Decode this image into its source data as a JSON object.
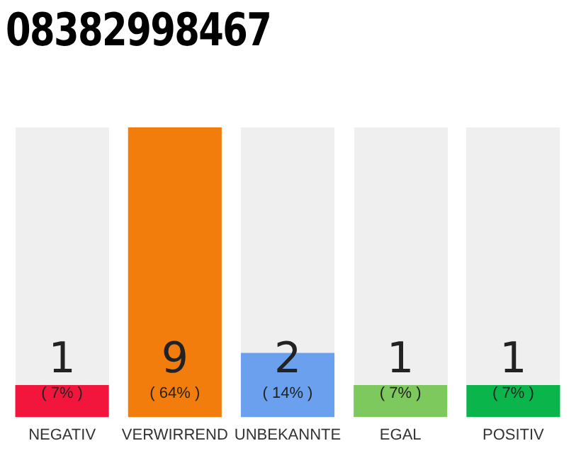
{
  "chart_data": {
    "type": "bar",
    "title": "08382998467",
    "categories": [
      "NEGATIV",
      "VERWIRREND",
      "UNBEKANNTE",
      "EGAL",
      "POSITIV"
    ],
    "values": [
      1,
      9,
      2,
      1,
      1
    ],
    "colors": [
      "#f2163c",
      "#f27d0c",
      "#6aa0ee",
      "#7dc95e",
      "#0ab54b"
    ],
    "ylim": [
      0,
      9
    ],
    "tick_labels": "x",
    "grid": false,
    "legend": false,
    "data_labels": true,
    "annotations": [
      "( 7% )",
      "( 64% )",
      "( 14% )",
      "( 7% )",
      "( 7% )"
    ]
  }
}
